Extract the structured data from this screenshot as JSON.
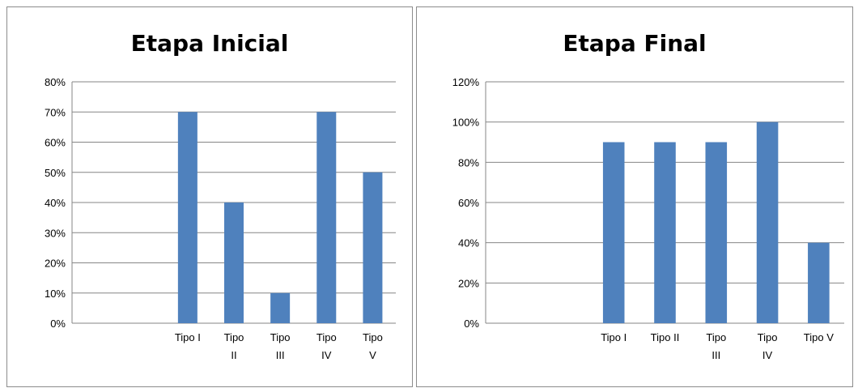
{
  "chart_data": [
    {
      "type": "bar",
      "title": "Etapa Inicial",
      "categories": [
        "",
        "",
        "Tipo I",
        "Tipo II",
        "Tipo III",
        "Tipo IV",
        "Tipo V"
      ],
      "category_label_lines": [
        [
          ""
        ],
        [
          ""
        ],
        [
          "Tipo I"
        ],
        [
          "Tipo",
          "II"
        ],
        [
          "Tipo",
          "III"
        ],
        [
          "Tipo",
          "IV"
        ],
        [
          "Tipo",
          "V"
        ]
      ],
      "values": [
        null,
        null,
        0.7,
        0.4,
        0.1,
        0.7,
        0.5
      ],
      "ylim": [
        0,
        0.8
      ],
      "yticks": [
        0,
        0.1,
        0.2,
        0.3,
        0.4,
        0.5,
        0.6,
        0.7,
        0.8
      ],
      "ytick_labels": [
        "0%",
        "10%",
        "20%",
        "30%",
        "40%",
        "50%",
        "60%",
        "70%",
        "80%"
      ],
      "grid": true,
      "legend": "none",
      "bar_color": "#4f81bd"
    },
    {
      "type": "bar",
      "title": "Etapa Final",
      "categories": [
        "",
        "",
        "Tipo I",
        "Tipo II",
        "Tipo III",
        "Tipo IV",
        "Tipo V"
      ],
      "category_label_lines": [
        [
          ""
        ],
        [
          ""
        ],
        [
          "Tipo I"
        ],
        [
          "Tipo II"
        ],
        [
          "Tipo",
          "III"
        ],
        [
          "Tipo",
          "IV"
        ],
        [
          "Tipo V"
        ]
      ],
      "values": [
        null,
        null,
        0.9,
        0.9,
        0.9,
        1.0,
        0.4
      ],
      "ylim": [
        0,
        1.2
      ],
      "yticks": [
        0,
        0.2,
        0.4,
        0.6,
        0.8,
        1.0,
        1.2
      ],
      "ytick_labels": [
        "0%",
        "20%",
        "40%",
        "60%",
        "80%",
        "100%",
        "120%"
      ],
      "grid": true,
      "legend": "none",
      "bar_color": "#4f81bd"
    }
  ]
}
